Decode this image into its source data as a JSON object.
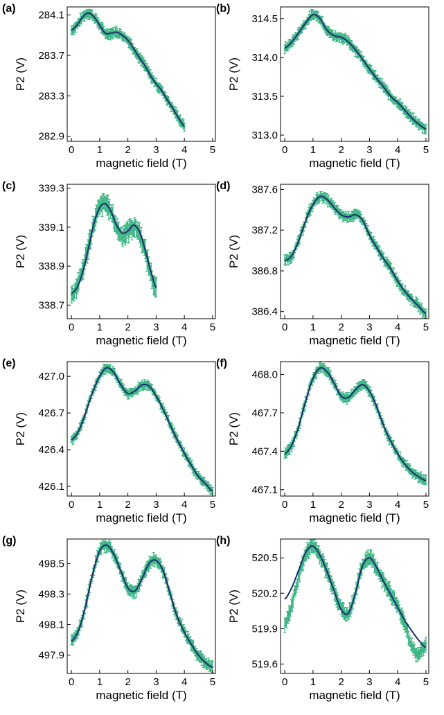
{
  "chart_data": [
    {
      "panel": "(a)",
      "type": "line",
      "xlabel": "magnetic field (T)",
      "ylabel": "P2 (V)",
      "xlim": [
        -0.15,
        5.1
      ],
      "ylim": [
        282.85,
        284.18
      ],
      "xticks": [
        0,
        1,
        2,
        3,
        4,
        5
      ],
      "xtick_labels": [
        "0",
        "1",
        "2",
        "3",
        "4",
        "5"
      ],
      "yticks": [
        282.9,
        283.3,
        283.7,
        284.1
      ],
      "ytick_labels": [
        "282.9",
        "283.3",
        "283.7",
        "284.1"
      ],
      "series": [
        {
          "kind": "measurement",
          "x_range": [
            0,
            4.0
          ],
          "x": [
            0,
            0.2,
            0.4,
            0.6,
            0.8,
            1.0,
            1.2,
            1.4,
            1.6,
            1.8,
            2.0,
            2.2,
            2.4,
            2.6,
            2.8,
            3.0,
            3.2,
            3.4,
            3.6,
            3.8,
            4.0
          ],
          "y": [
            283.95,
            284.0,
            284.08,
            284.12,
            284.08,
            284.0,
            283.92,
            283.92,
            283.93,
            283.9,
            283.85,
            283.77,
            283.68,
            283.6,
            283.5,
            283.42,
            283.35,
            283.26,
            283.17,
            283.08,
            283.0
          ],
          "error": 0.04
        },
        {
          "kind": "fit",
          "x": [
            0,
            0.2,
            0.4,
            0.6,
            0.8,
            1.0,
            1.2,
            1.4,
            1.6,
            1.8,
            2.0,
            2.2,
            2.4,
            2.6,
            2.8,
            3.0,
            3.2,
            3.4,
            3.6,
            3.8,
            4.0
          ],
          "y": [
            283.95,
            284.0,
            284.08,
            284.12,
            284.08,
            284.0,
            283.92,
            283.92,
            283.93,
            283.9,
            283.85,
            283.77,
            283.68,
            283.6,
            283.5,
            283.42,
            283.35,
            283.26,
            283.17,
            283.08,
            283.0
          ]
        }
      ]
    },
    {
      "panel": "(b)",
      "type": "line",
      "xlabel": "magnetic field (T)",
      "ylabel": "P2 (V)",
      "xlim": [
        -0.15,
        5.1
      ],
      "ylim": [
        312.92,
        314.65
      ],
      "xticks": [
        0,
        1,
        2,
        3,
        4,
        5
      ],
      "xtick_labels": [
        "0",
        "1",
        "2",
        "3",
        "4",
        "5"
      ],
      "yticks": [
        313.0,
        313.5,
        314.0,
        314.5
      ],
      "ytick_labels": [
        "313.0",
        "313.5",
        "314.0",
        "314.5"
      ],
      "series": [
        {
          "kind": "measurement",
          "x_range": [
            0,
            5.0
          ],
          "x": [
            0,
            0.25,
            0.5,
            0.75,
            1.0,
            1.25,
            1.5,
            1.75,
            2.0,
            2.25,
            2.5,
            2.75,
            3.0,
            3.25,
            3.5,
            3.75,
            4.0,
            4.25,
            4.5,
            4.75,
            5.0
          ],
          "y": [
            314.12,
            314.2,
            314.32,
            314.45,
            314.55,
            314.5,
            314.35,
            314.28,
            314.26,
            314.2,
            314.1,
            313.98,
            313.85,
            313.73,
            313.62,
            313.5,
            313.42,
            313.32,
            313.22,
            313.14,
            313.08
          ],
          "error": 0.05
        },
        {
          "kind": "fit",
          "x": [
            0,
            0.25,
            0.5,
            0.75,
            1.0,
            1.25,
            1.5,
            1.75,
            2.0,
            2.25,
            2.5,
            2.75,
            3.0,
            3.25,
            3.5,
            3.75,
            4.0,
            4.25,
            4.5,
            4.75,
            5.0
          ],
          "y": [
            314.12,
            314.2,
            314.32,
            314.45,
            314.55,
            314.5,
            314.35,
            314.28,
            314.26,
            314.2,
            314.1,
            313.98,
            313.85,
            313.73,
            313.62,
            313.5,
            313.42,
            313.32,
            313.22,
            313.14,
            313.08
          ]
        }
      ]
    },
    {
      "panel": "(c)",
      "type": "line",
      "xlabel": "magnetic field (T)",
      "ylabel": "P2 (V)",
      "xlim": [
        -0.15,
        5.1
      ],
      "ylim": [
        338.63,
        339.32
      ],
      "xticks": [
        0,
        1,
        2,
        3,
        4,
        5
      ],
      "xtick_labels": [
        "0",
        "1",
        "2",
        "3",
        "4",
        "5"
      ],
      "yticks": [
        338.7,
        338.9,
        339.1,
        339.3
      ],
      "ytick_labels": [
        "338.7",
        "338.9",
        "339.1",
        "339.3"
      ],
      "series": [
        {
          "kind": "measurement",
          "x_range": [
            0,
            3.0
          ],
          "x": [
            0,
            0.2,
            0.4,
            0.6,
            0.8,
            1.0,
            1.2,
            1.4,
            1.6,
            1.8,
            2.0,
            2.2,
            2.4,
            2.6,
            2.8,
            3.0
          ],
          "y": [
            338.75,
            338.8,
            338.88,
            339.0,
            339.12,
            339.2,
            339.22,
            339.18,
            339.1,
            339.06,
            339.08,
            339.1,
            339.07,
            338.98,
            338.87,
            338.78
          ],
          "error": 0.04
        },
        {
          "kind": "fit",
          "x": [
            0,
            0.2,
            0.4,
            0.6,
            0.8,
            1.0,
            1.2,
            1.4,
            1.6,
            1.8,
            2.0,
            2.2,
            2.4,
            2.6,
            2.8,
            3.0
          ],
          "y": [
            338.76,
            338.79,
            338.87,
            338.99,
            339.12,
            339.2,
            339.22,
            339.18,
            339.11,
            339.07,
            339.08,
            339.11,
            339.08,
            338.99,
            338.88,
            338.79
          ]
        }
      ]
    },
    {
      "panel": "(d)",
      "type": "line",
      "xlabel": "magnetic field (T)",
      "ylabel": "P2 (V)",
      "xlim": [
        -0.15,
        5.1
      ],
      "ylim": [
        386.33,
        387.65
      ],
      "xticks": [
        0,
        1,
        2,
        3,
        4,
        5
      ],
      "xtick_labels": [
        "0",
        "1",
        "2",
        "3",
        "4",
        "5"
      ],
      "yticks": [
        386.4,
        386.8,
        387.2,
        387.6
      ],
      "ytick_labels": [
        "386.4",
        "386.8",
        "387.2",
        "387.6"
      ],
      "series": [
        {
          "kind": "measurement",
          "x_range": [
            0,
            5.0
          ],
          "x": [
            0,
            0.25,
            0.5,
            0.75,
            1.0,
            1.25,
            1.5,
            1.75,
            2.0,
            2.25,
            2.5,
            2.75,
            3.0,
            3.25,
            3.5,
            3.75,
            4.0,
            4.25,
            4.5,
            4.75,
            5.0
          ],
          "y": [
            386.9,
            386.95,
            387.1,
            387.3,
            387.45,
            387.53,
            387.5,
            387.42,
            387.35,
            387.33,
            387.35,
            387.3,
            387.15,
            387.03,
            386.92,
            386.82,
            386.7,
            386.6,
            386.52,
            386.45,
            386.38
          ],
          "error": 0.04
        },
        {
          "kind": "fit",
          "x": [
            0,
            0.25,
            0.5,
            0.75,
            1.0,
            1.25,
            1.5,
            1.75,
            2.0,
            2.25,
            2.5,
            2.75,
            3.0,
            3.25,
            3.5,
            3.75,
            4.0,
            4.25,
            4.5,
            4.75,
            5.0
          ],
          "y": [
            386.9,
            386.95,
            387.1,
            387.3,
            387.45,
            387.53,
            387.5,
            387.42,
            387.35,
            387.33,
            387.35,
            387.3,
            387.15,
            387.03,
            386.92,
            386.82,
            386.7,
            386.6,
            386.52,
            386.45,
            386.38
          ]
        }
      ]
    },
    {
      "panel": "(e)",
      "type": "line",
      "xlabel": "magnetic field (T)",
      "ylabel": "P2 (V)",
      "xlim": [
        -0.15,
        5.1
      ],
      "ylim": [
        426.02,
        427.12
      ],
      "xticks": [
        0,
        1,
        2,
        3,
        4,
        5
      ],
      "xtick_labels": [
        "0",
        "1",
        "2",
        "3",
        "4",
        "5"
      ],
      "yticks": [
        426.1,
        426.4,
        426.7,
        427.0
      ],
      "ytick_labels": [
        "426.1",
        "426.4",
        "426.7",
        "427.0"
      ],
      "series": [
        {
          "kind": "measurement",
          "x_range": [
            0,
            5.0
          ],
          "x": [
            0,
            0.25,
            0.5,
            0.75,
            1.0,
            1.25,
            1.5,
            1.75,
            2.0,
            2.25,
            2.5,
            2.75,
            3.0,
            3.25,
            3.5,
            3.75,
            4.0,
            4.25,
            4.5,
            4.75,
            5.0
          ],
          "y": [
            426.48,
            426.55,
            426.7,
            426.87,
            427.0,
            427.07,
            427.03,
            426.93,
            426.86,
            426.88,
            426.93,
            426.92,
            426.84,
            426.73,
            426.6,
            426.48,
            426.37,
            426.27,
            426.18,
            426.12,
            426.06
          ],
          "error": 0.03
        },
        {
          "kind": "fit",
          "x": [
            0,
            0.25,
            0.5,
            0.75,
            1.0,
            1.25,
            1.5,
            1.75,
            2.0,
            2.25,
            2.5,
            2.75,
            3.0,
            3.25,
            3.5,
            3.75,
            4.0,
            4.25,
            4.5,
            4.75,
            5.0
          ],
          "y": [
            426.48,
            426.55,
            426.7,
            426.87,
            427.0,
            427.07,
            427.03,
            426.93,
            426.86,
            426.88,
            426.93,
            426.92,
            426.84,
            426.73,
            426.6,
            426.48,
            426.37,
            426.27,
            426.18,
            426.12,
            426.06
          ]
        }
      ]
    },
    {
      "panel": "(f)",
      "type": "line",
      "xlabel": "magnetic field (T)",
      "ylabel": "P2 (V)",
      "xlim": [
        -0.15,
        5.1
      ],
      "ylim": [
        467.05,
        468.1
      ],
      "xticks": [
        0,
        1,
        2,
        3,
        4,
        5
      ],
      "xtick_labels": [
        "0",
        "1",
        "2",
        "3",
        "4",
        "5"
      ],
      "yticks": [
        467.1,
        467.4,
        467.7,
        468.0
      ],
      "ytick_labels": [
        "467.1",
        "467.4",
        "467.7",
        "468.0"
      ],
      "series": [
        {
          "kind": "measurement",
          "x_range": [
            0,
            5.0
          ],
          "x": [
            0,
            0.25,
            0.5,
            0.75,
            1.0,
            1.25,
            1.5,
            1.75,
            2.0,
            2.25,
            2.5,
            2.75,
            3.0,
            3.25,
            3.5,
            3.75,
            4.0,
            4.25,
            4.5,
            4.75,
            5.0
          ],
          "y": [
            467.38,
            467.45,
            467.6,
            467.8,
            467.97,
            468.05,
            468.02,
            467.93,
            467.83,
            467.82,
            467.88,
            467.92,
            467.87,
            467.75,
            467.6,
            467.48,
            467.38,
            467.3,
            467.24,
            467.2,
            467.17
          ],
          "error": 0.03
        },
        {
          "kind": "fit",
          "x": [
            0,
            0.25,
            0.5,
            0.75,
            1.0,
            1.25,
            1.5,
            1.75,
            2.0,
            2.25,
            2.5,
            2.75,
            3.0,
            3.25,
            3.5,
            3.75,
            4.0,
            4.25,
            4.5,
            4.75,
            5.0
          ],
          "y": [
            467.38,
            467.45,
            467.6,
            467.8,
            467.97,
            468.05,
            468.02,
            467.93,
            467.83,
            467.82,
            467.88,
            467.92,
            467.87,
            467.75,
            467.6,
            467.48,
            467.38,
            467.3,
            467.24,
            467.2,
            467.17
          ]
        }
      ]
    },
    {
      "panel": "(g)",
      "type": "line",
      "xlabel": "magnetic field (T)",
      "ylabel": "P2 (V)",
      "xlim": [
        -0.15,
        5.1
      ],
      "ylim": [
        497.78,
        498.66
      ],
      "xticks": [
        0,
        1,
        2,
        3,
        4,
        5
      ],
      "xtick_labels": [
        "0",
        "1",
        "2",
        "3",
        "4",
        "5"
      ],
      "yticks": [
        497.9,
        498.1,
        498.3,
        498.5
      ],
      "ytick_labels": [
        "497.9",
        "498.1",
        "498.3",
        "498.5"
      ],
      "series": [
        {
          "kind": "measurement",
          "x_range": [
            0,
            5.0
          ],
          "x": [
            0,
            0.25,
            0.5,
            0.75,
            1.0,
            1.25,
            1.5,
            1.75,
            2.0,
            2.25,
            2.5,
            2.75,
            3.0,
            3.25,
            3.5,
            3.75,
            4.0,
            4.25,
            4.5,
            4.75,
            5.0
          ],
          "y": [
            497.99,
            498.06,
            498.22,
            498.43,
            498.58,
            498.62,
            498.56,
            498.45,
            498.34,
            498.32,
            498.4,
            498.5,
            498.52,
            498.45,
            498.3,
            498.15,
            498.05,
            497.97,
            497.9,
            497.85,
            497.82
          ],
          "error": 0.03
        },
        {
          "kind": "fit",
          "x": [
            0,
            0.25,
            0.5,
            0.75,
            1.0,
            1.25,
            1.5,
            1.75,
            2.0,
            2.25,
            2.5,
            2.75,
            3.0,
            3.25,
            3.5,
            3.75,
            4.0,
            4.25,
            4.5,
            4.75,
            5.0
          ],
          "y": [
            497.99,
            498.06,
            498.22,
            498.43,
            498.58,
            498.62,
            498.56,
            498.45,
            498.34,
            498.32,
            498.4,
            498.5,
            498.52,
            498.45,
            498.3,
            498.15,
            498.05,
            497.97,
            497.9,
            497.85,
            497.82
          ]
        }
      ]
    },
    {
      "panel": "(h)",
      "type": "line",
      "xlabel": "magnetic field (T)",
      "ylabel": "P2 (V)",
      "xlim": [
        -0.15,
        5.1
      ],
      "ylim": [
        519.52,
        520.66
      ],
      "xticks": [
        0,
        1,
        2,
        3,
        4,
        5
      ],
      "xtick_labels": [
        "0",
        "1",
        "2",
        "3",
        "4",
        "5"
      ],
      "yticks": [
        519.6,
        519.9,
        520.2,
        520.5
      ],
      "ytick_labels": [
        "519.6",
        "519.9",
        "520.2",
        "520.5"
      ],
      "series": [
        {
          "kind": "measurement",
          "x_range": [
            0,
            5.0
          ],
          "x": [
            0,
            0.25,
            0.5,
            0.75,
            1.0,
            1.25,
            1.5,
            1.75,
            2.0,
            2.25,
            2.5,
            2.75,
            3.0,
            3.25,
            3.5,
            3.75,
            4.0,
            4.25,
            4.5,
            4.75,
            5.0
          ],
          "y": [
            519.93,
            520.1,
            520.35,
            520.53,
            520.6,
            520.52,
            520.38,
            520.23,
            520.07,
            520.03,
            520.2,
            520.43,
            520.5,
            520.42,
            520.3,
            520.2,
            520.08,
            519.95,
            519.75,
            519.68,
            519.78
          ],
          "error": 0.05
        },
        {
          "kind": "fit",
          "x": [
            0,
            0.25,
            0.5,
            0.75,
            1.0,
            1.25,
            1.5,
            1.75,
            2.0,
            2.25,
            2.5,
            2.75,
            3.0,
            3.25,
            3.5,
            3.75,
            4.0,
            4.25,
            4.5,
            4.75,
            5.0
          ],
          "y": [
            520.15,
            520.25,
            520.4,
            520.55,
            520.6,
            520.52,
            520.38,
            520.22,
            520.06,
            520.03,
            520.2,
            520.43,
            520.5,
            520.42,
            520.3,
            520.19,
            520.08,
            519.97,
            519.88,
            519.8,
            519.74
          ]
        }
      ]
    }
  ],
  "colors": {
    "measurement": "#3bb583",
    "fit": "#1f2d6e",
    "axis": "#000000"
  }
}
